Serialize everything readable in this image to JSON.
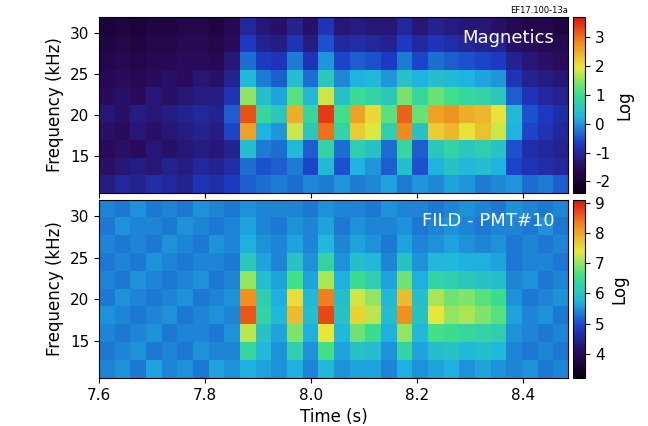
{
  "chart_data": [
    {
      "type": "heatmap",
      "label": "Magnetics",
      "annotation": "EF17.100-13a",
      "ylabel": "Frequency (kHz)",
      "tick_labels": "y",
      "xlim": [
        7.6,
        8.485
      ],
      "ylim": [
        10.5,
        32
      ],
      "xticks": [
        7.6,
        7.8,
        8.0,
        8.2,
        8.4
      ],
      "yticks": [
        15,
        20,
        25,
        30
      ],
      "cells": [
        [
          -1.2,
          -1.0,
          -1.1,
          -0.9,
          -1.0,
          -1.1,
          -0.8,
          -0.9,
          -0.7,
          -0.4,
          -0.3,
          -0.2,
          -0.3,
          -0.1,
          -0.2,
          0.0,
          -0.2,
          -0.1,
          0.1,
          -0.2,
          0.0,
          -0.1,
          0.1,
          0.0,
          -0.2,
          -0.1,
          0.0,
          -0.3,
          -0.2,
          -0.4
        ],
        [
          -1.4,
          -1.3,
          -1.2,
          -1.3,
          -1.1,
          -1.2,
          -1.0,
          -1.1,
          -0.9,
          -0.3,
          -0.5,
          -0.4,
          -0.2,
          -0.6,
          0.3,
          -0.5,
          0.2,
          0.0,
          -0.4,
          0.4,
          -0.5,
          0.2,
          0.5,
          0.3,
          0.4,
          0.2,
          -0.6,
          -0.8,
          -0.9,
          -1.0
        ],
        [
          -1.5,
          -1.4,
          -1.5,
          -1.3,
          -1.4,
          -1.3,
          -1.2,
          -1.3,
          -1.1,
          0.4,
          -0.2,
          -0.3,
          0.3,
          -0.4,
          0.8,
          -0.3,
          0.7,
          0.5,
          -0.3,
          0.9,
          -0.4,
          0.6,
          0.8,
          0.6,
          0.7,
          0.5,
          -0.5,
          -0.9,
          -1.0,
          -1.1
        ],
        [
          -1.4,
          -1.5,
          -1.3,
          -1.4,
          -1.3,
          -1.2,
          -1.1,
          -1.2,
          -0.6,
          2.6,
          0.2,
          0.0,
          1.8,
          0.6,
          3.0,
          0.8,
          2.2,
          1.9,
          0.7,
          2.8,
          0.5,
          2.2,
          2.4,
          2.0,
          2.3,
          1.8,
          0.2,
          -0.6,
          -0.8,
          -1.0
        ],
        [
          -1.3,
          -1.4,
          -1.2,
          -1.3,
          -1.2,
          -1.1,
          -1.0,
          -1.1,
          -0.4,
          3.2,
          0.9,
          0.6,
          2.5,
          0.9,
          3.4,
          1.1,
          2.6,
          2.1,
          1.2,
          3.1,
          1.3,
          2.6,
          2.7,
          2.5,
          2.4,
          2.0,
          0.3,
          -0.5,
          -0.7,
          -0.9
        ],
        [
          -1.5,
          -1.4,
          -1.5,
          -1.3,
          -1.4,
          -1.3,
          -1.2,
          -1.2,
          -0.8,
          1.5,
          0.4,
          0.1,
          1.2,
          0.3,
          1.8,
          0.5,
          1.0,
          0.8,
          0.6,
          1.4,
          0.9,
          1.3,
          1.1,
          0.9,
          0.8,
          0.6,
          -0.4,
          -0.8,
          -1.0,
          -1.1
        ],
        [
          -1.6,
          -1.5,
          -1.6,
          -1.5,
          -1.4,
          -1.5,
          -1.3,
          -1.4,
          -1.1,
          0.3,
          -0.2,
          -0.4,
          0.4,
          -0.3,
          0.6,
          -0.1,
          0.2,
          0.3,
          0.0,
          0.5,
          0.2,
          0.4,
          0.3,
          0.2,
          0.1,
          0.0,
          -0.8,
          -1.1,
          -1.2,
          -1.3
        ],
        [
          -1.7,
          -1.6,
          -1.7,
          -1.6,
          -1.6,
          -1.5,
          -1.5,
          -1.6,
          -1.3,
          -0.3,
          -0.7,
          -0.8,
          -0.2,
          -0.8,
          0.0,
          -0.6,
          -0.4,
          -0.5,
          -0.7,
          -0.2,
          -0.6,
          -0.3,
          -0.4,
          -0.5,
          -0.6,
          -0.7,
          -1.1,
          -1.3,
          -1.4,
          -1.5
        ],
        [
          -1.8,
          -1.7,
          -1.8,
          -1.7,
          -1.7,
          -1.6,
          -1.6,
          -1.7,
          -1.5,
          -0.7,
          -1.1,
          -1.2,
          -0.8,
          -1.2,
          -0.5,
          -1.0,
          -0.9,
          -1.0,
          -1.1,
          -0.7,
          -1.0,
          -0.8,
          -0.9,
          -1.0,
          -1.1,
          -1.1,
          -1.4,
          -1.5,
          -1.6,
          -1.6
        ],
        [
          -1.9,
          -1.8,
          -1.9,
          -1.8,
          -1.8,
          -1.7,
          -1.7,
          -1.8,
          -1.6,
          -1.0,
          -1.3,
          -1.4,
          -1.1,
          -1.4,
          -0.8,
          -1.3,
          -1.2,
          -1.3,
          -1.3,
          -1.0,
          -1.3,
          -1.1,
          -1.2,
          -1.3,
          -1.3,
          -1.4,
          -1.6,
          -1.7,
          -1.7,
          -1.8
        ]
      ],
      "colorbar": {
        "label": "Log",
        "lim": [
          -2.4,
          3.7
        ],
        "ticks": [
          -2,
          -1,
          0,
          1,
          2,
          3
        ]
      }
    },
    {
      "type": "heatmap",
      "label": "FILD - PMT#10",
      "xlabel": "Time (s)",
      "ylabel": "Frequency (kHz)",
      "xlim": [
        7.6,
        8.485
      ],
      "ylim": [
        10.5,
        32
      ],
      "xticks": [
        7.6,
        7.8,
        8.0,
        8.2,
        8.4
      ],
      "yticks": [
        15,
        20,
        25,
        30
      ],
      "cells": [
        [
          5.4,
          5.5,
          5.3,
          5.6,
          5.4,
          5.5,
          5.3,
          5.6,
          5.5,
          5.7,
          5.6,
          5.5,
          5.7,
          5.4,
          5.8,
          5.5,
          5.6,
          5.6,
          5.4,
          5.7,
          5.5,
          5.6,
          5.7,
          5.5,
          5.6,
          5.5,
          5.4,
          5.5,
          5.3,
          5.4
        ],
        [
          5.3,
          5.4,
          5.5,
          5.3,
          5.4,
          5.3,
          5.5,
          5.4,
          5.4,
          6.4,
          5.8,
          5.5,
          6.2,
          5.5,
          6.6,
          5.6,
          6.0,
          5.9,
          5.5,
          6.3,
          5.6,
          5.9,
          6.0,
          5.8,
          5.9,
          5.8,
          5.4,
          5.3,
          5.4,
          5.3
        ],
        [
          5.4,
          5.3,
          5.4,
          5.5,
          5.3,
          5.4,
          5.4,
          5.3,
          5.5,
          7.2,
          6.0,
          5.6,
          6.9,
          5.7,
          7.4,
          5.8,
          6.8,
          6.5,
          5.7,
          7.0,
          5.8,
          6.6,
          6.5,
          6.4,
          6.3,
          6.2,
          5.5,
          5.4,
          5.3,
          5.4
        ],
        [
          5.5,
          5.4,
          5.3,
          5.4,
          5.5,
          5.3,
          5.4,
          5.5,
          5.4,
          8.6,
          6.3,
          5.8,
          7.8,
          5.9,
          8.7,
          6.0,
          7.6,
          7.2,
          5.9,
          8.2,
          6.0,
          7.4,
          7.0,
          7.1,
          6.9,
          6.7,
          5.6,
          5.4,
          5.5,
          5.3
        ],
        [
          5.3,
          5.5,
          5.4,
          5.3,
          5.4,
          5.5,
          5.3,
          5.4,
          5.5,
          8.2,
          6.2,
          5.7,
          7.5,
          5.8,
          8.3,
          5.9,
          7.3,
          7.0,
          5.8,
          7.8,
          5.9,
          7.1,
          6.8,
          6.9,
          6.7,
          6.5,
          5.5,
          5.3,
          5.4,
          5.5
        ],
        [
          5.4,
          5.3,
          5.5,
          5.4,
          5.3,
          5.4,
          5.5,
          5.3,
          5.4,
          7.0,
          5.9,
          5.6,
          6.6,
          5.6,
          7.1,
          5.7,
          6.5,
          6.2,
          5.6,
          6.8,
          5.7,
          6.3,
          6.2,
          6.1,
          6.0,
          5.9,
          5.4,
          5.5,
          5.3,
          5.4
        ],
        [
          5.3,
          5.4,
          5.3,
          5.5,
          5.4,
          5.3,
          5.4,
          5.4,
          5.3,
          6.1,
          5.6,
          5.4,
          6.0,
          5.5,
          6.3,
          5.5,
          5.9,
          5.8,
          5.4,
          6.0,
          5.5,
          5.8,
          5.8,
          5.7,
          5.7,
          5.6,
          5.3,
          5.4,
          5.4,
          5.3
        ],
        [
          5.4,
          5.3,
          5.4,
          5.3,
          5.5,
          5.4,
          5.3,
          5.5,
          5.4,
          5.7,
          5.5,
          5.4,
          5.6,
          5.4,
          5.8,
          5.4,
          5.6,
          5.5,
          5.3,
          5.6,
          5.4,
          5.5,
          5.6,
          5.5,
          5.4,
          5.5,
          5.3,
          5.4,
          5.3,
          5.4
        ],
        [
          5.3,
          5.5,
          5.4,
          5.4,
          5.3,
          5.5,
          5.4,
          5.3,
          5.4,
          5.6,
          5.4,
          5.3,
          5.5,
          5.4,
          5.6,
          5.3,
          5.5,
          5.4,
          5.4,
          5.5,
          5.3,
          5.4,
          5.5,
          5.4,
          5.3,
          5.4,
          5.4,
          5.3,
          5.5,
          5.3
        ],
        [
          5.4,
          5.3,
          5.5,
          5.3,
          5.4,
          5.3,
          5.5,
          5.4,
          5.3,
          5.5,
          5.4,
          5.4,
          5.4,
          5.3,
          5.5,
          5.4,
          5.4,
          5.3,
          5.5,
          5.4,
          5.4,
          5.3,
          5.4,
          5.5,
          5.4,
          5.3,
          5.5,
          5.4,
          5.3,
          5.4
        ]
      ],
      "colorbar": {
        "label": "Log",
        "lim": [
          3.2,
          9.1
        ],
        "ticks": [
          4,
          5,
          6,
          7,
          8,
          9
        ]
      }
    }
  ]
}
